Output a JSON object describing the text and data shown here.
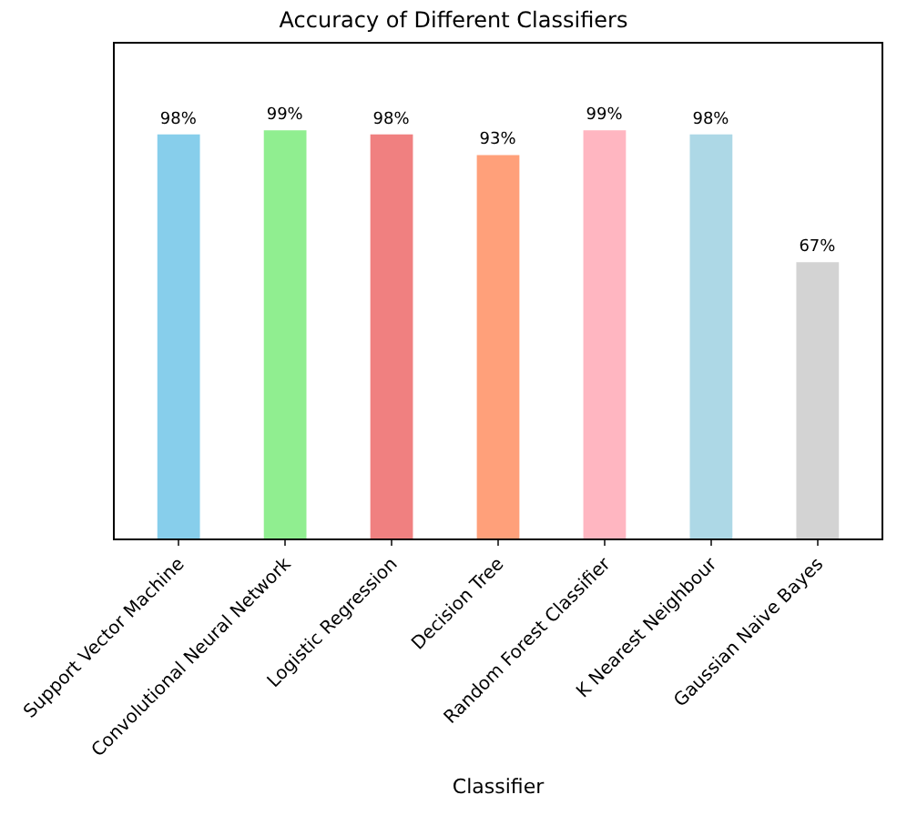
{
  "chart_data": {
    "type": "bar",
    "title": "Accuracy of Different Classifiers",
    "xlabel": "Classifier",
    "categories": [
      "Support Vector Machine",
      "Convolutional Neural Network",
      "Logistic Regression",
      "Decision Tree",
      "Random Forest Classifier",
      "K Nearest Neighbour",
      "Gaussian Naive Bayes"
    ],
    "values": [
      98,
      99,
      98,
      93,
      99,
      98,
      67
    ],
    "colors": [
      "#87ceeb",
      "#90ee90",
      "#f08080",
      "#ffa07a",
      "#ffb6c1",
      "#add8e6",
      "#d3d3d3"
    ],
    "value_labels": [
      "98%",
      "99%",
      "98%",
      "93%",
      "99%",
      "98%",
      "67%"
    ],
    "ylim": [
      0,
      120
    ],
    "tick_labels": "x"
  }
}
